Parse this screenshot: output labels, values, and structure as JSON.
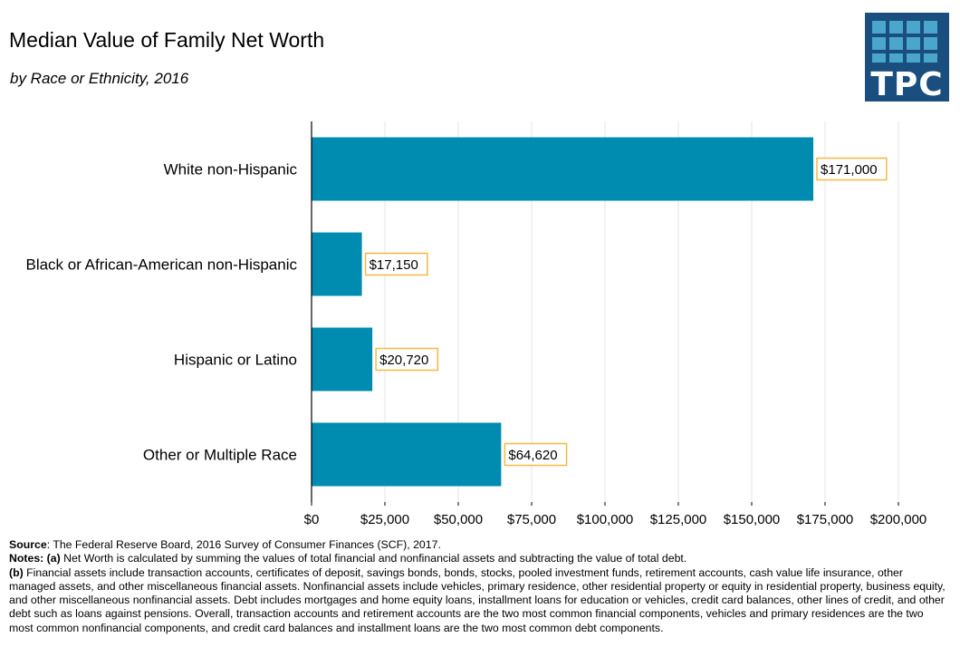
{
  "header": {
    "title": "Median Value of Family Net Worth",
    "subtitle": "by Race or Ethnicity, 2016",
    "logo_text": "TPC"
  },
  "colors": {
    "bar": "#008bb0",
    "label_border": "#f5b942",
    "grid": "#e6e6e6",
    "axis": "#000000",
    "logo_bg": "#1a4e7e",
    "logo_squares": "#4aa6cc"
  },
  "chart_data": {
    "type": "bar",
    "orientation": "horizontal",
    "title": "Median Value of Family Net Worth",
    "subtitle": "by Race or Ethnicity, 2016",
    "categories": [
      "White non-Hispanic",
      "Black or African-American non-Hispanic",
      "Hispanic or Latino",
      "Other or Multiple Race"
    ],
    "values": [
      171000,
      17150,
      20720,
      64620
    ],
    "data_labels": [
      "$171,000",
      "$17,150",
      "$20,720",
      "$64,620"
    ],
    "xlim": [
      0,
      200000
    ],
    "ticks": [
      0,
      25000,
      50000,
      75000,
      100000,
      125000,
      150000,
      175000,
      200000
    ],
    "tick_labels": [
      "$0",
      "$25,000",
      "$50,000",
      "$75,000",
      "$100,000",
      "$125,000",
      "$150,000",
      "$175,000",
      "$200,000"
    ],
    "xlabel": "",
    "ylabel": "",
    "grid": true,
    "legend": "none"
  },
  "footnotes": {
    "source_label": "Source",
    "source_text": ": The Federal Reserve Board, 2016 Survey of Consumer Finances (SCF), 2017.",
    "notes_label": "Notes: (a)",
    "note_a": " Net Worth is calculated by summing the values of total financial and nonfinancial assets and subtracting the value of total debt.",
    "note_b_label": "(b)",
    "note_b": " Financial assets include transaction accounts, certificates of deposit, savings bonds, bonds, stocks, pooled investment funds, retirement accounts, cash value life insurance, other managed assets, and other miscellaneous financial assets. Nonfinancial assets include vehicles, primary residence, other residential property or equity in residential property, business equity, and other miscellaneous nonfinancial assets. Debt includes mortgages and home equity loans, installment loans for education or vehicles, credit card balances, other lines of credit, and other debt such as loans against pensions. Overall, transaction accounts and retirement accounts are the two most common financial components, vehicles and primary residences are the two most common nonfinancial components, and credit card balances and installment loans are the two most common debt components."
  }
}
